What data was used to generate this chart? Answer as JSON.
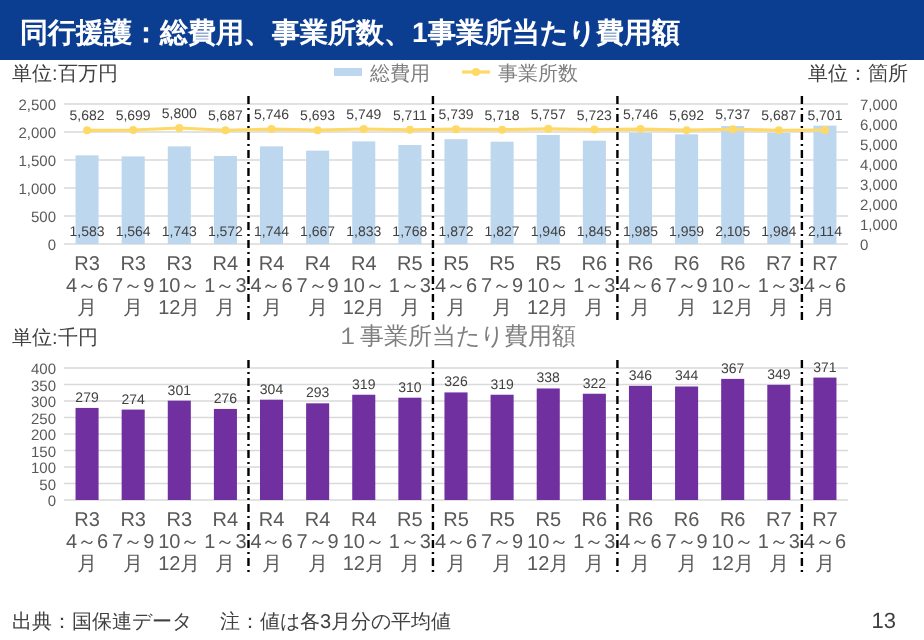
{
  "chart_data": [
    {
      "type": "bar",
      "title": "同行援護：総費用、事業所数、1事業所当たり費用額",
      "ylabel": "単位:百万円",
      "y2label": "単位：箇所",
      "categories": [
        "R3 4～6月",
        "R3 7～9月",
        "R3 10～12月",
        "R4 1～3月",
        "R4 4～6月",
        "R4 7～9月",
        "R4 10～12月",
        "R5 1～3月",
        "R5 4～6月",
        "R5 7～9月",
        "R5 10～12月",
        "R6 1～3月",
        "R6 4～6月",
        "R6 7～9月",
        "R6 10～12月",
        "R7 1～3月",
        "R7 4～6月"
      ],
      "series": [
        {
          "name": "総費用",
          "type": "bar",
          "color": "#bdd7ee",
          "values": [
            1583,
            1564,
            1743,
            1572,
            1744,
            1667,
            1833,
            1768,
            1872,
            1827,
            1946,
            1845,
            1985,
            1959,
            2105,
            1984,
            2114
          ],
          "value_labels": [
            "1,583",
            "1,564",
            "1,743",
            "1,572",
            "1,744",
            "1,667",
            "1,833",
            "1,768",
            "1,872",
            "1,827",
            "1,946",
            "1,845",
            "1,985",
            "1,959",
            "2,105",
            "1,984",
            "2,114"
          ]
        },
        {
          "name": "事業所数",
          "type": "line",
          "axis": "y2",
          "color": "#ffd966",
          "marker": "circle",
          "values": [
            5682,
            5699,
            5800,
            5687,
            5746,
            5693,
            5749,
            5711,
            5739,
            5718,
            5757,
            5723,
            5746,
            5692,
            5737,
            5687,
            5701
          ],
          "value_labels": [
            "5,682",
            "5,699",
            "5,800",
            "5,687",
            "5,746",
            "5,693",
            "5,749",
            "5,711",
            "5,739",
            "5,718",
            "5,757",
            "5,723",
            "5,746",
            "5,692",
            "5,737",
            "5,687",
            "5,701"
          ]
        }
      ],
      "ylim": [
        0,
        2500
      ],
      "yticks": [
        0,
        {
          "value": 500,
          "label": "500"
        },
        {
          "value": 1000,
          "label": "1,000"
        },
        {
          "value": 1500,
          "label": "1,500"
        },
        {
          "value": 2000,
          "label": "2,000"
        },
        {
          "value": 2500,
          "label": "2,500"
        }
      ],
      "y2lim": [
        0,
        7000
      ],
      "y2ticks": [
        0,
        {
          "value": 1000,
          "label": "1,000"
        },
        {
          "value": 2000,
          "label": "2,000"
        },
        {
          "value": 3000,
          "label": "3,000"
        },
        {
          "value": 4000,
          "label": "4,000"
        },
        {
          "value": 5000,
          "label": "5,000"
        },
        {
          "value": 6000,
          "label": "6,000"
        },
        {
          "value": 7000,
          "label": "7,000"
        }
      ],
      "grid": "y",
      "legend": "top"
    },
    {
      "type": "bar",
      "title": "１事業所当たり費用額",
      "ylabel": "単位:千円",
      "categories": [
        "R3 4～6月",
        "R3 7～9月",
        "R3 10～12月",
        "R4 1～3月",
        "R4 4～6月",
        "R4 7～9月",
        "R4 10～12月",
        "R5 1～3月",
        "R5 4～6月",
        "R5 7～9月",
        "R5 10～12月",
        "R6 1～3月",
        "R6 4～6月",
        "R6 7～9月",
        "R6 10～12月",
        "R7 1～3月",
        "R7 4～6月"
      ],
      "color": "#7030a0",
      "values": [
        279,
        274,
        301,
        276,
        304,
        293,
        319,
        310,
        326,
        319,
        338,
        322,
        346,
        344,
        367,
        349,
        371
      ],
      "ylim": [
        0,
        400
      ],
      "yticks": [
        0,
        50,
        100,
        150,
        200,
        250,
        300,
        350,
        400
      ],
      "grid": "y",
      "data_labels": true,
      "annotations": [
        "出典：国保連データ",
        "注：値は各3月分の平均値",
        "13"
      ]
    }
  ]
}
